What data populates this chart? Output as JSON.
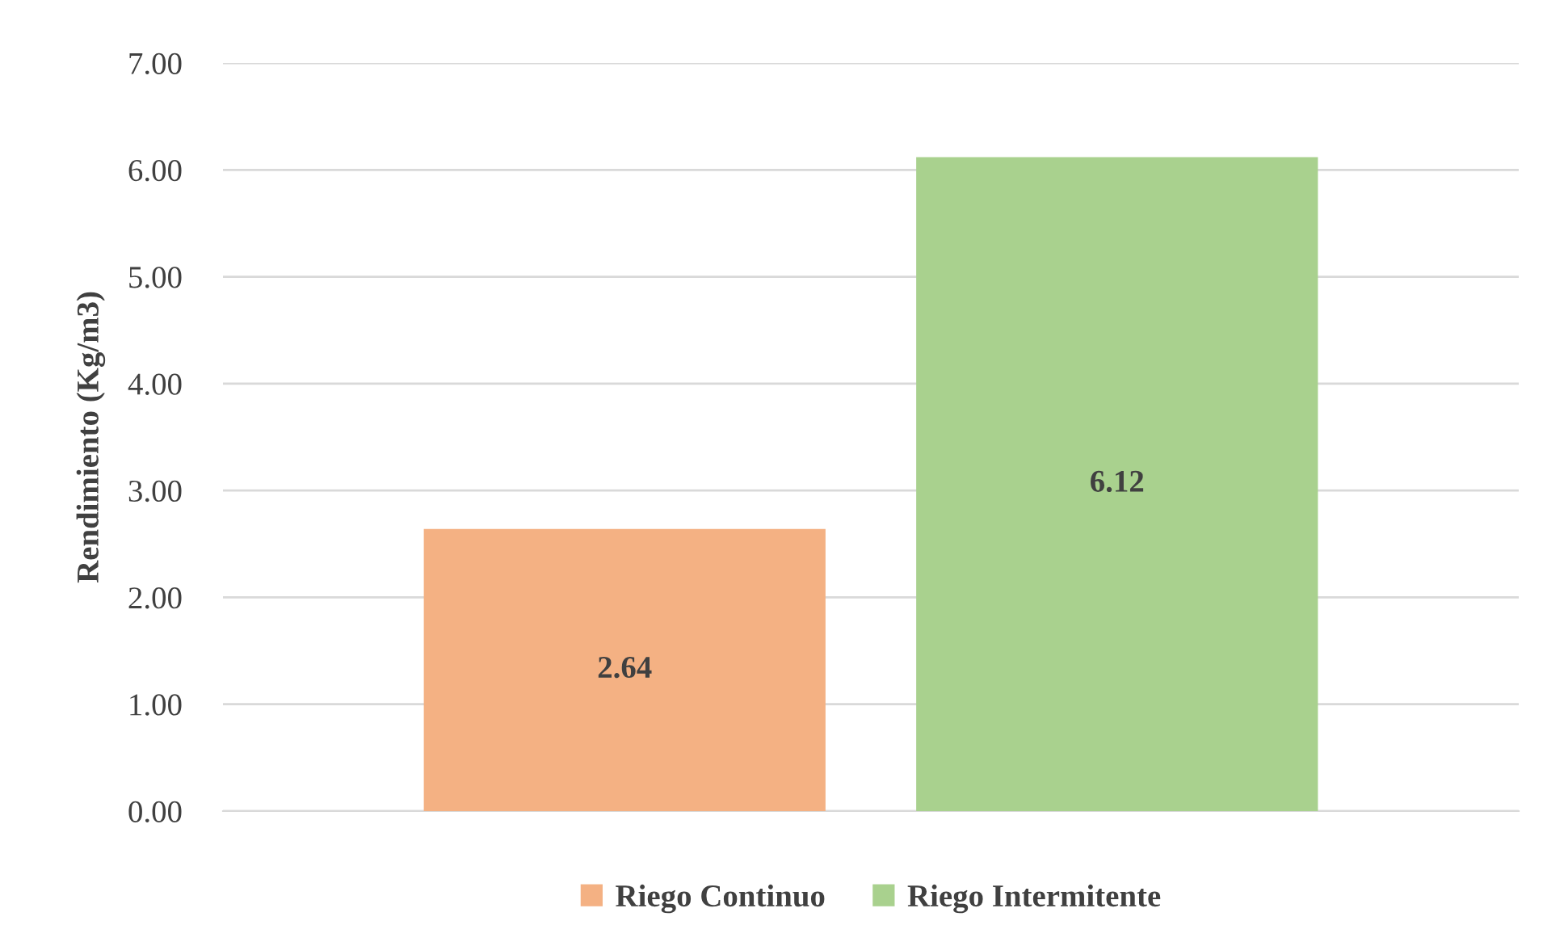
{
  "chart_data": {
    "type": "bar",
    "ylabel": "Rendimiento (Kg/m3)",
    "categories": [
      null
    ],
    "series": [
      {
        "name": "Riego Continuo",
        "color": "#f4b183",
        "values": [
          2.64
        ]
      },
      {
        "name": "Riego Intermitente",
        "color": "#a9d18e",
        "values": [
          6.12
        ]
      }
    ],
    "ylim": [
      0,
      7
    ],
    "yticks": [
      {
        "value": 0,
        "label": "0.00"
      },
      {
        "value": 1,
        "label": "1.00"
      },
      {
        "value": 2,
        "label": "2.00"
      },
      {
        "value": 3,
        "label": "3.00"
      },
      {
        "value": 4,
        "label": "4.00"
      },
      {
        "value": 5,
        "label": "5.00"
      },
      {
        "value": 6,
        "label": "6.00"
      },
      {
        "value": 7,
        "label": "7.00"
      }
    ],
    "grid": "y",
    "legend": "bottom",
    "data_labels": true
  }
}
